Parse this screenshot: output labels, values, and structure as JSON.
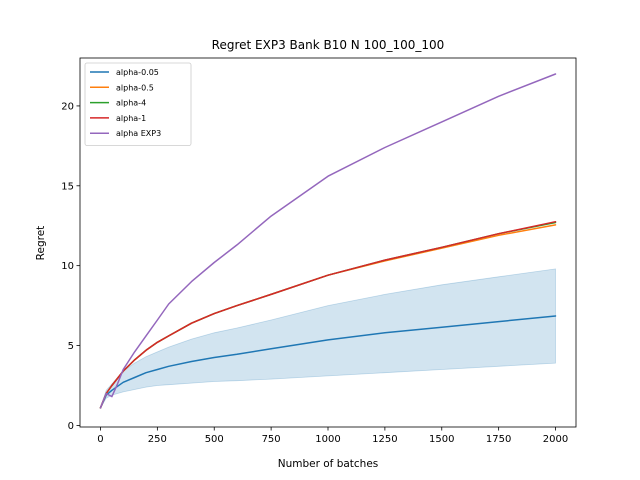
{
  "chart_data": {
    "type": "line",
    "title": "Regret EXP3 Bank B10 N 100_100_100",
    "xlabel": "Number of batches",
    "ylabel": "Regret",
    "xlim": [
      -90,
      2090
    ],
    "ylim": [
      -0.1,
      23.0
    ],
    "xticks": [
      0,
      250,
      500,
      750,
      1000,
      1250,
      1500,
      1750,
      2000
    ],
    "yticks": [
      0,
      5,
      10,
      15,
      20
    ],
    "grid": false,
    "legend": {
      "placement": "top-left"
    },
    "series": [
      {
        "name": "alpha-0.05",
        "color": "#1f77b4",
        "x": [
          0,
          25,
          50,
          100,
          150,
          200,
          250,
          300,
          400,
          500,
          600,
          750,
          1000,
          1250,
          1500,
          1750,
          2000
        ],
        "values": [
          1.1,
          1.9,
          2.2,
          2.7,
          3.0,
          3.3,
          3.5,
          3.7,
          4.0,
          4.25,
          4.45,
          4.8,
          5.35,
          5.8,
          6.15,
          6.5,
          6.85
        ],
        "band_lower": [
          1.1,
          1.7,
          1.9,
          2.1,
          2.25,
          2.4,
          2.5,
          2.55,
          2.65,
          2.75,
          2.8,
          2.9,
          3.1,
          3.3,
          3.5,
          3.7,
          3.9
        ],
        "band_upper": [
          1.1,
          2.2,
          2.6,
          3.4,
          3.9,
          4.3,
          4.6,
          4.9,
          5.4,
          5.8,
          6.1,
          6.6,
          7.5,
          8.2,
          8.8,
          9.3,
          9.8
        ]
      },
      {
        "name": "alpha-0.5",
        "color": "#ff7f0e",
        "x": [
          0,
          25,
          50,
          100,
          150,
          200,
          250,
          300,
          400,
          500,
          600,
          750,
          1000,
          1250,
          1500,
          1750,
          2000
        ],
        "values": [
          1.1,
          2.0,
          2.5,
          3.4,
          4.1,
          4.7,
          5.2,
          5.6,
          6.4,
          7.0,
          7.5,
          8.2,
          9.4,
          10.3,
          11.1,
          11.9,
          12.55
        ]
      },
      {
        "name": "alpha-4",
        "color": "#2ca02c",
        "x": [
          0,
          25,
          50,
          100,
          150,
          200,
          250,
          300,
          400,
          500,
          600,
          750,
          1000,
          1250,
          1500,
          1750,
          2000
        ],
        "values": [
          1.1,
          2.0,
          2.5,
          3.4,
          4.1,
          4.7,
          5.2,
          5.6,
          6.4,
          7.0,
          7.5,
          8.2,
          9.4,
          10.35,
          11.15,
          12.0,
          12.7
        ]
      },
      {
        "name": "alpha-1",
        "color": "#d62728",
        "x": [
          0,
          25,
          50,
          100,
          150,
          200,
          250,
          300,
          400,
          500,
          600,
          750,
          1000,
          1250,
          1500,
          1750,
          2000
        ],
        "values": [
          1.1,
          2.0,
          2.5,
          3.4,
          4.1,
          4.7,
          5.2,
          5.6,
          6.4,
          7.0,
          7.5,
          8.2,
          9.4,
          10.35,
          11.15,
          12.0,
          12.75
        ]
      },
      {
        "name": "alpha EXP3",
        "color": "#9467bd",
        "x": [
          0,
          25,
          50,
          75,
          100,
          150,
          200,
          250,
          300,
          400,
          500,
          600,
          750,
          1000,
          1250,
          1500,
          1750,
          2000
        ],
        "values": [
          1.1,
          2.0,
          1.8,
          2.6,
          3.5,
          4.6,
          5.6,
          6.6,
          7.6,
          9.0,
          10.2,
          11.3,
          13.1,
          15.6,
          17.4,
          19.0,
          20.6,
          22.0
        ]
      }
    ]
  }
}
